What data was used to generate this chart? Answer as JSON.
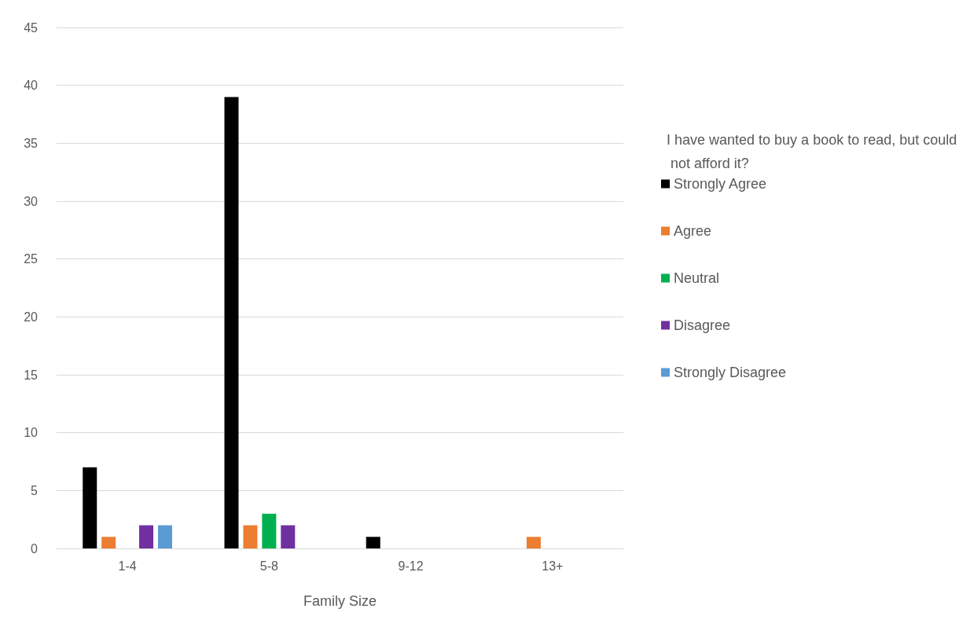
{
  "chart_data": {
    "type": "bar",
    "xlabel": "Family Size",
    "legend_title": "I have wanted to buy a book to read, but could not afford it?",
    "categories": [
      "1-4",
      "5-8",
      "9-12",
      "13+"
    ],
    "series": [
      {
        "name": "Strongly Agree",
        "color": "#000000",
        "values": [
          7,
          39,
          1,
          0
        ]
      },
      {
        "name": "Agree",
        "color": "#ed7d31",
        "values": [
          1,
          2,
          0,
          1
        ]
      },
      {
        "name": "Neutral",
        "color": "#00b050",
        "values": [
          0,
          3,
          0,
          0
        ]
      },
      {
        "name": "Disagree",
        "color": "#7030a0",
        "values": [
          2,
          2,
          0,
          0
        ]
      },
      {
        "name": "Strongly Disagree",
        "color": "#5b9bd5",
        "values": [
          2,
          0,
          0,
          0
        ]
      }
    ],
    "ylim": [
      0,
      45
    ],
    "yticks": [
      0,
      5,
      10,
      15,
      20,
      25,
      30,
      35,
      40,
      45
    ],
    "grid": "y",
    "legend": "right"
  }
}
